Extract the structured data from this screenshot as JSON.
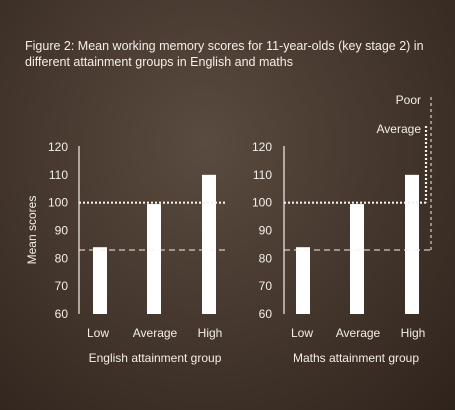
{
  "caption": "Figure 2: Mean working memory scores for 11-year-olds (key stage 2) in different attainment groups in English and maths",
  "colors": {
    "background": "#47392f",
    "bars": "#ffffff",
    "text": "#f4efe9"
  },
  "chart_data": [
    {
      "type": "bar",
      "categories": [
        "Low",
        "Average",
        "High"
      ],
      "values": [
        84,
        99.5,
        110
      ],
      "xlabel": "English attainment group",
      "ylabel": "Mean scores",
      "ylim": [
        60,
        120
      ],
      "yticks": [
        "60",
        "70",
        "80",
        "90",
        "100",
        "110",
        "120"
      ],
      "reference_lines": [
        {
          "style": "dotted",
          "value": 100
        },
        {
          "style": "dashed",
          "value": 83
        }
      ]
    },
    {
      "type": "bar",
      "categories": [
        "Low",
        "Average",
        "High"
      ],
      "values": [
        84,
        99.5,
        110
      ],
      "xlabel": "Maths attainment group",
      "ylabel": "",
      "ylim": [
        60,
        120
      ],
      "yticks": [
        "60",
        "70",
        "80",
        "90",
        "100",
        "110",
        "120"
      ],
      "reference_lines": [
        {
          "style": "dotted",
          "value": 100
        },
        {
          "style": "dashed",
          "value": 83
        }
      ]
    }
  ],
  "annotations": {
    "poor": "Poor",
    "average": "Average"
  }
}
